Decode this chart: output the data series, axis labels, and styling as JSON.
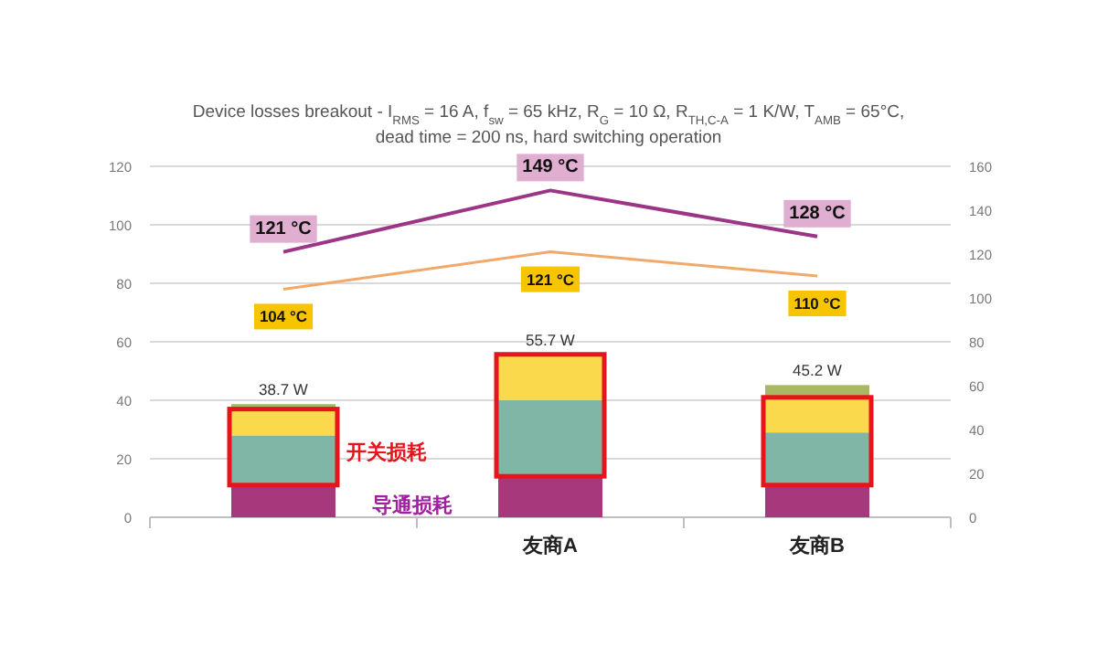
{
  "chart_data": {
    "type": "bar",
    "title": "Device losses breakout - I$_{RMS}$ = 16 A, f$_{sw}$ = 65 kHz, R$_{G}$ = 10 Ω, R$_{TH,C-A}$ = 1 K/W, T$_{AMB}$ = 65°C,",
    "subtitle": "dead time = 200 ns, hard switching operation",
    "categories": [
      null,
      "友商A",
      "友商B"
    ],
    "stacked": true,
    "series": [
      {
        "color": "#a8387c",
        "values": [
          11,
          14,
          11
        ]
      },
      {
        "color": "#80b6a6",
        "values": [
          17,
          26,
          18
        ]
      },
      {
        "color": "#fbd94c",
        "values": [
          9,
          15.7,
          12
        ]
      },
      {
        "color": "#a9b862",
        "values": [
          1.7,
          0,
          4.2
        ]
      },
      {
        "type": "line",
        "axis": "y2",
        "color": "#9c3585",
        "values": [
          121,
          149,
          128
        ],
        "value_labels": [
          "121 °C",
          "149 °C",
          "128 °C"
        ]
      },
      {
        "type": "line",
        "axis": "y2",
        "color": "#f0a96a",
        "values": [
          104,
          121,
          110
        ],
        "value_labels": [
          "104 °C",
          "121 °C",
          "110 °C"
        ]
      }
    ],
    "totals": [
      "38.7 W",
      "55.7 W",
      "45.2 W"
    ],
    "annotations": [
      "开关损耗",
      "导通损耗"
    ],
    "ylim": [
      0,
      120
    ],
    "yticks": [
      0,
      20,
      40,
      60,
      80,
      100,
      120
    ],
    "y2lim": [
      0,
      160
    ],
    "y2ticks": [
      0,
      20,
      40,
      60,
      80,
      100,
      120,
      140,
      160
    ],
    "grid": "y",
    "marker": "none"
  }
}
